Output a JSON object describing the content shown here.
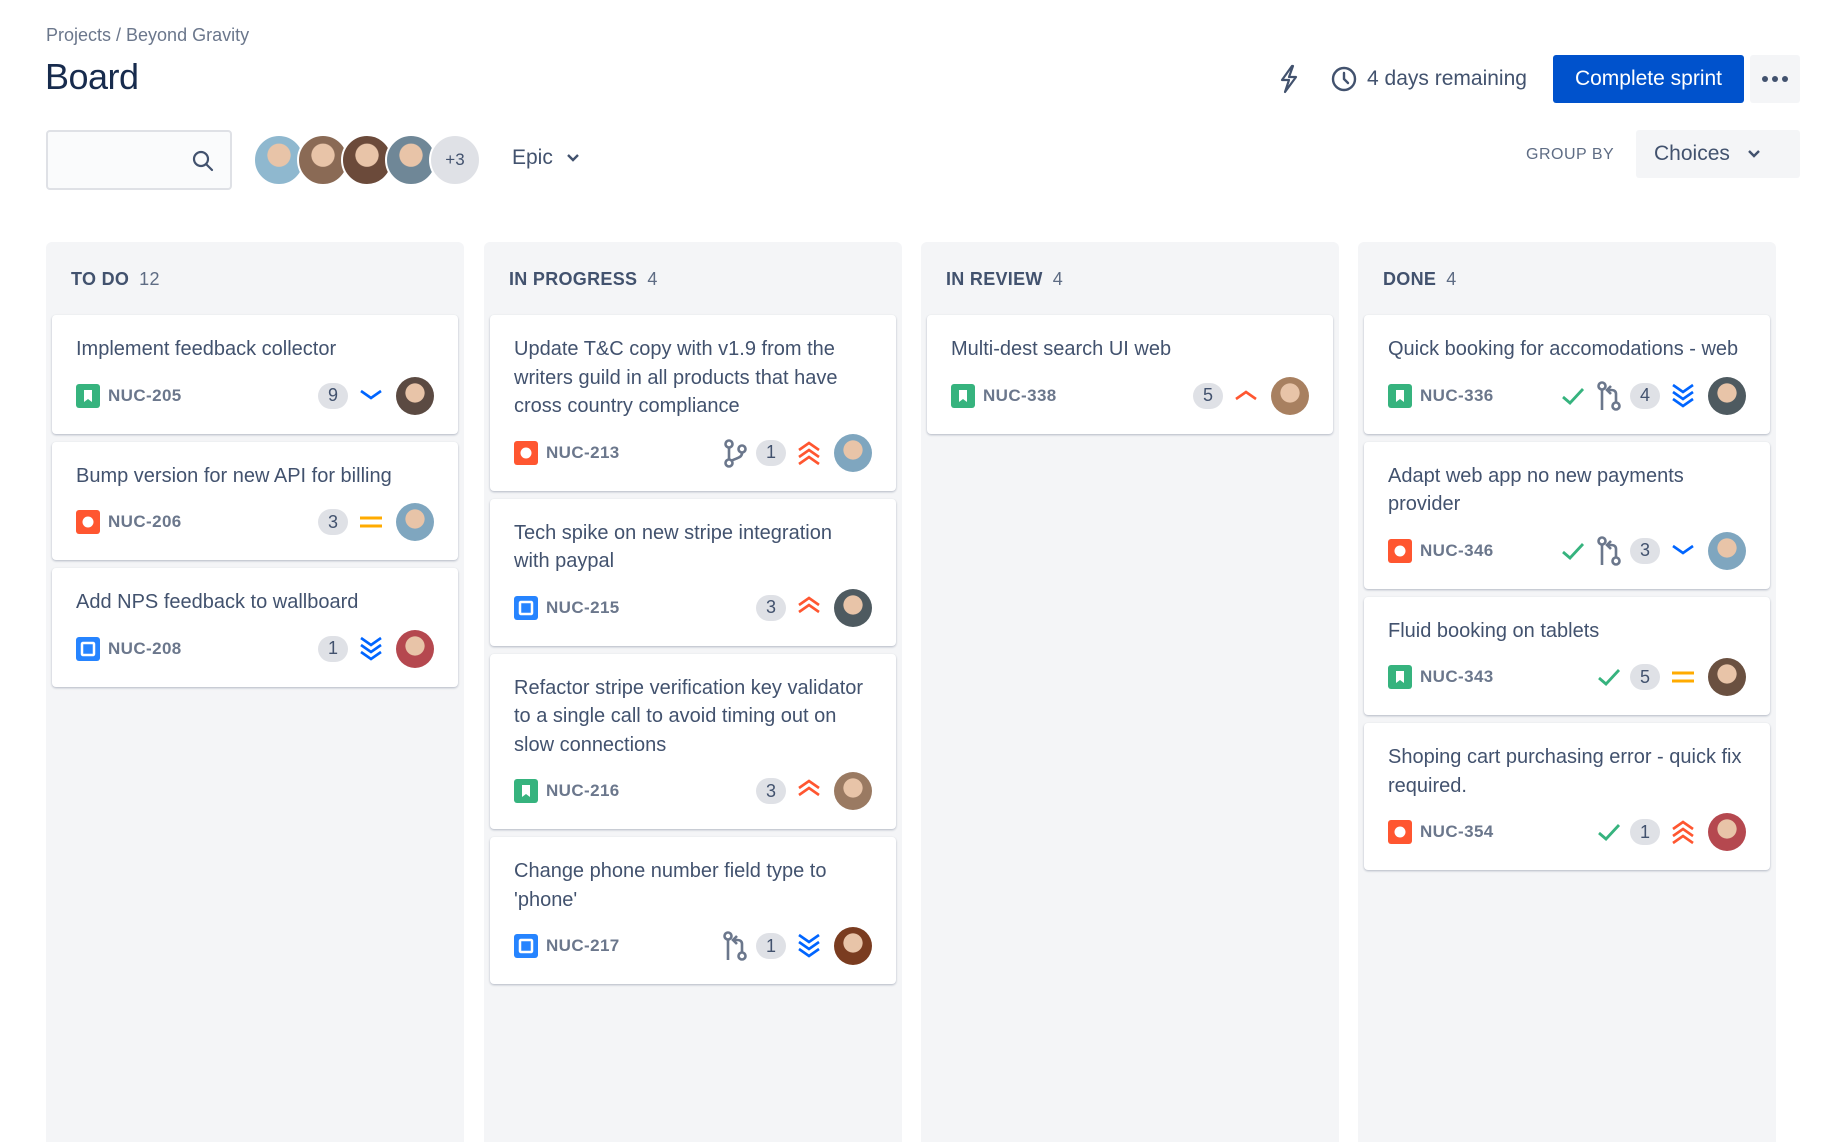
{
  "header": {
    "breadcrumb": "Projects / Beyond Gravity",
    "title": "Board",
    "remaining": "4 days remaining",
    "complete_label": "Complete sprint",
    "more_avatars": "+3",
    "epic_label": "Epic",
    "group_by_label": "GROUP BY",
    "group_by_value": "Choices",
    "search_placeholder": ""
  },
  "colors": {
    "accent": "#0052cc",
    "story": "#36b37e",
    "bug": "#ff5630",
    "task": "#2684ff",
    "done_check": "#36b37e",
    "priority_up": "#ff5630",
    "priority_down": "#0065ff",
    "priority_medium": "#ffab00"
  },
  "avatars": [
    {
      "color": "#8fb8cf"
    },
    {
      "color": "#8a6a55"
    },
    {
      "color": "#6b4a3a"
    },
    {
      "color": "#6f8797"
    }
  ],
  "columns": [
    {
      "name": "TO DO",
      "count": "12",
      "cards": [
        {
          "title": "Implement feedback collector",
          "type": "story",
          "key": "NUC-205",
          "points": "9",
          "priority": "down-1",
          "avatar": "#5b4a42"
        },
        {
          "title": "Bump version for new API for billing",
          "type": "bug",
          "key": "NUC-206",
          "points": "3",
          "priority": "medium",
          "avatar": "#7fa6bf"
        },
        {
          "title": "Add NPS feedback to wallboard",
          "type": "task",
          "key": "NUC-208",
          "points": "1",
          "priority": "down-3",
          "avatar": "#b5484f"
        }
      ]
    },
    {
      "name": "IN PROGRESS",
      "count": "4",
      "cards": [
        {
          "title": "Update T&C copy with v1.9 from the writers guild in all products that have cross country compliance",
          "type": "bug",
          "key": "NUC-213",
          "dev": "branch",
          "points": "1",
          "priority": "up-3",
          "avatar": "#7fa6bf"
        },
        {
          "title": "Tech spike on new stripe integration with paypal",
          "type": "task",
          "key": "NUC-215",
          "points": "3",
          "priority": "up-2",
          "avatar": "#4e5a60"
        },
        {
          "title": "Refactor stripe verification key validator to a single call to avoid timing out on slow connections",
          "type": "story",
          "key": "NUC-216",
          "points": "3",
          "priority": "up-2",
          "avatar": "#9a7a62"
        },
        {
          "title": "Change phone number field type to 'phone'",
          "type": "task",
          "key": "NUC-217",
          "dev": "pr",
          "points": "1",
          "priority": "down-3",
          "avatar": "#7a3c20"
        }
      ]
    },
    {
      "name": "IN REVIEW",
      "count": "4",
      "cards": [
        {
          "title": "Multi-dest search UI web",
          "type": "story",
          "key": "NUC-338",
          "points": "5",
          "priority": "up-1",
          "avatar": "#a88060"
        }
      ]
    },
    {
      "name": "DONE",
      "count": "4",
      "cards": [
        {
          "title": "Quick booking for accomodations - web",
          "type": "story",
          "key": "NUC-336",
          "done": true,
          "dev": "pr",
          "points": "4",
          "priority": "down-3",
          "avatar": "#4e5a60"
        },
        {
          "title": "Adapt web app no new payments provider",
          "type": "bug",
          "key": "NUC-346",
          "done": true,
          "dev": "pr",
          "points": "3",
          "priority": "down-1",
          "avatar": "#7fa6bf"
        },
        {
          "title": "Fluid booking on tablets",
          "type": "story",
          "key": "NUC-343",
          "done": true,
          "points": "5",
          "priority": "medium",
          "avatar": "#6a5040"
        },
        {
          "title": "Shoping cart purchasing error - quick fix required.",
          "type": "bug",
          "key": "NUC-354",
          "done": true,
          "points": "1",
          "priority": "up-3",
          "avatar": "#b5484f"
        }
      ]
    }
  ]
}
